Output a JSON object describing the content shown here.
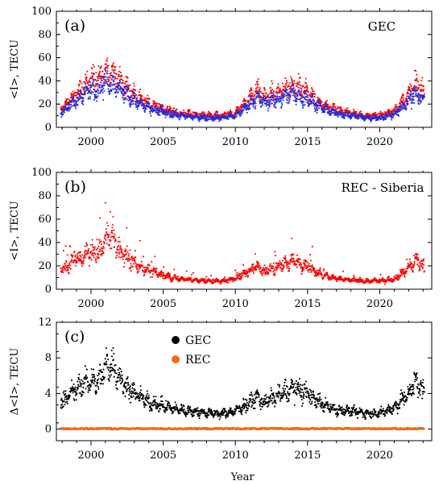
{
  "xlabel": "Year",
  "chart_data": [
    {
      "type": "scatter",
      "panel_label": "(a)",
      "title": "GEC",
      "ylabel": "<I>, TECU",
      "xlim": [
        1997.6,
        2023.6
      ],
      "ylim": [
        0,
        100
      ],
      "yticks": [
        0,
        20,
        40,
        60,
        80,
        100
      ],
      "xticks": [
        2000,
        2005,
        2010,
        2015,
        2020
      ],
      "series": [
        {
          "color": "#ff0000",
          "envelope": {
            "x": [
              1998,
              1999,
              2000,
              2000.5,
              2001,
              2001.5,
              2002,
              2003,
              2004,
              2005,
              2006,
              2007,
              2008,
              2009,
              2010,
              2011,
              2011.5,
              2012,
              2013,
              2014,
              2015,
              2016,
              2017,
              2018,
              2019,
              2020,
              2021,
              2022,
              2022.5,
              2023
            ],
            "y": [
              16,
              28,
              42,
              40,
              50,
              46,
              40,
              28,
              20,
              16,
              12,
              11,
              10,
              10,
              12,
              25,
              32,
              26,
              30,
              36,
              30,
              20,
              15,
              12,
              10,
              10,
              14,
              28,
              38,
              30
            ]
          }
        },
        {
          "color": "#1f2ee8",
          "envelope": {
            "x": [
              1998,
              1999,
              2000,
              2000.5,
              2001,
              2001.5,
              2002,
              2003,
              2004,
              2005,
              2006,
              2007,
              2008,
              2009,
              2010,
              2011,
              2011.5,
              2012,
              2013,
              2014,
              2015,
              2016,
              2017,
              2018,
              2019,
              2020,
              2021,
              2022,
              2022.5,
              2023
            ],
            "y": [
              13,
              23,
              34,
              32,
              40,
              38,
              33,
              23,
              16,
              13,
              10,
              9,
              8,
              8,
              10,
              20,
              26,
              21,
              24,
              29,
              24,
              16,
              12,
              10,
              8,
              8,
              11,
              22,
              30,
              24
            ]
          }
        }
      ]
    },
    {
      "type": "scatter",
      "panel_label": "(b)",
      "title": "REC - Siberia",
      "ylabel": "<I>, TECU",
      "xlim": [
        1997.6,
        2023.6
      ],
      "ylim": [
        0,
        100
      ],
      "yticks": [
        0,
        20,
        40,
        60,
        80,
        100
      ],
      "xticks": [
        2000,
        2005,
        2010,
        2015,
        2020
      ],
      "series": [
        {
          "color": "#ff0000",
          "envelope": {
            "x": [
              1998,
              1999,
              2000,
              2000.5,
              2001,
              2001.5,
              2002,
              2003,
              2004,
              2005,
              2006,
              2007,
              2008,
              2009,
              2010,
              2011,
              2011.5,
              2012,
              2013,
              2014,
              2015,
              2016,
              2017,
              2018,
              2019,
              2020,
              2021,
              2022,
              2022.5,
              2023
            ],
            "y": [
              18,
              25,
              32,
              30,
              42,
              45,
              32,
              22,
              16,
              12,
              9,
              8,
              7,
              7,
              9,
              16,
              20,
              15,
              20,
              24,
              20,
              12,
              9,
              8,
              7,
              7,
              9,
              18,
              25,
              20
            ]
          }
        }
      ]
    },
    {
      "type": "scatter",
      "panel_label": "(c)",
      "ylabel": "Δ<I>, TECU",
      "xlim": [
        1997.6,
        2023.6
      ],
      "ylim": [
        -1.3,
        12
      ],
      "yticks": [
        0,
        4,
        8,
        12
      ],
      "xticks": [
        2000,
        2005,
        2010,
        2015,
        2020
      ],
      "legend_position": "top-center",
      "series": [
        {
          "name": "GEC",
          "color": "#000000",
          "envelope": {
            "x": [
              1998,
              1999,
              2000,
              2000.5,
              2001,
              2001.5,
              2002,
              2003,
              2004,
              2005,
              2006,
              2007,
              2008,
              2009,
              2010,
              2011,
              2011.5,
              2012,
              2013,
              2014,
              2015,
              2016,
              2017,
              2018,
              2019,
              2020,
              2021,
              2022,
              2022.5,
              2023
            ],
            "y": [
              3.2,
              4.5,
              5.5,
              5.2,
              7.0,
              7.5,
              5.5,
              4.0,
              3.0,
              2.6,
              2.2,
              2.0,
              1.8,
              1.7,
              2.0,
              3.0,
              3.6,
              3.0,
              3.8,
              4.6,
              4.0,
              2.8,
              2.2,
              2.0,
              1.8,
              1.8,
              2.4,
              4.0,
              5.5,
              4.2
            ]
          }
        },
        {
          "name": "REC",
          "color": "#f26a1b",
          "envelope": {
            "x": [
              1998,
              2023
            ],
            "y": [
              0.05,
              0.05
            ]
          }
        }
      ]
    }
  ]
}
